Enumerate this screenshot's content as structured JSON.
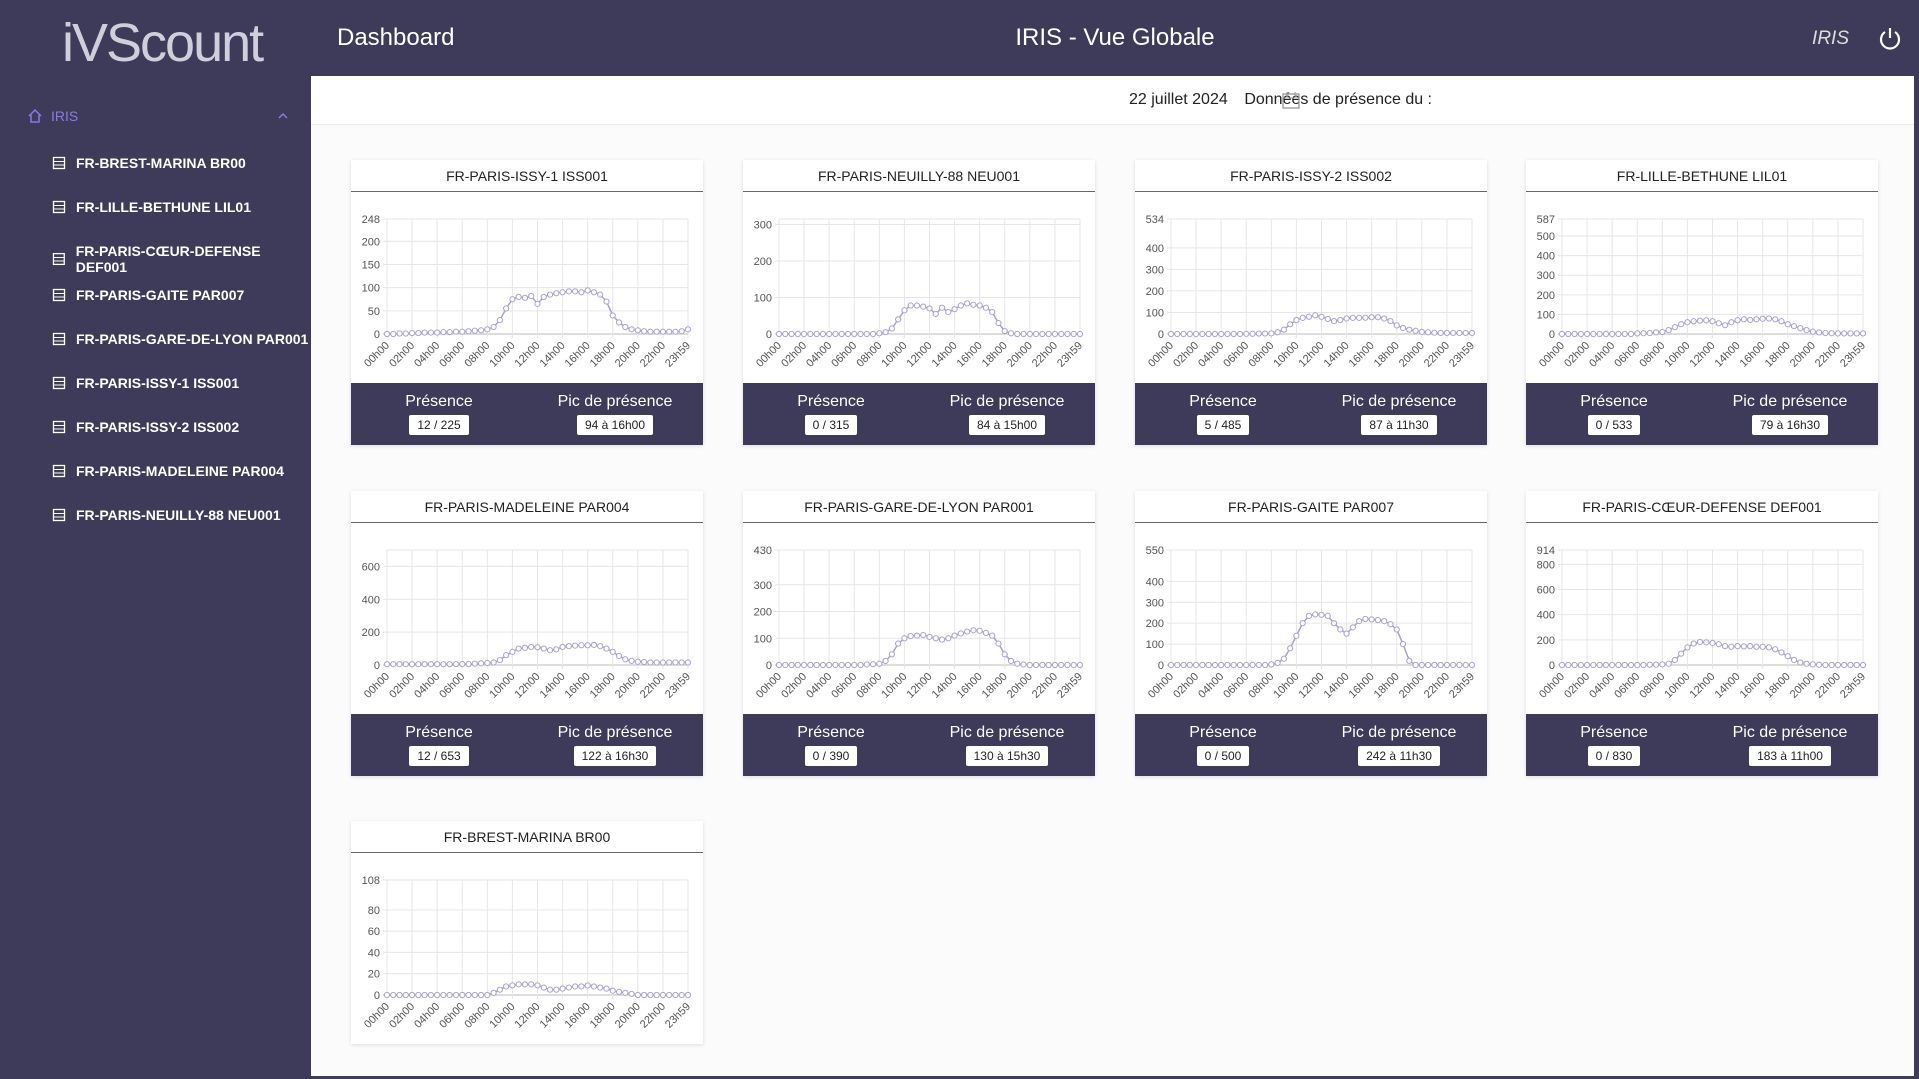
{
  "logo": "iVScount",
  "header": {
    "page": "Dashboard",
    "title": "IRIS - Vue Globale",
    "user": "IRIS"
  },
  "sidebar": {
    "group": "IRIS",
    "items": [
      "FR-BREST-MARINA BR00",
      "FR-LILLE-BETHUNE LIL01",
      "FR-PARIS-CŒUR-DEFENSE DEF001",
      "FR-PARIS-GAITE PAR007",
      "FR-PARIS-GARE-DE-LYON PAR001",
      "FR-PARIS-ISSY-1 ISS001",
      "FR-PARIS-ISSY-2 ISS002",
      "FR-PARIS-MADELEINE PAR004",
      "FR-PARIS-NEUILLY-88 NEU001"
    ]
  },
  "date_bar": {
    "label": "Données de présence du :",
    "date": "22 juillet 2024"
  },
  "chart_data": [
    {
      "type": "line",
      "title": "FR-PARIS-ISSY-1 ISS001",
      "color": "#a9a1d4",
      "categories": [
        "00h00",
        null,
        null,
        null,
        "02h00",
        null,
        null,
        null,
        "04h00",
        null,
        null,
        null,
        "06h00",
        null,
        null,
        null,
        "08h00",
        null,
        null,
        null,
        "10h00",
        null,
        null,
        null,
        "12h00",
        null,
        null,
        null,
        "14h00",
        null,
        null,
        null,
        "16h00",
        null,
        null,
        null,
        "18h00",
        null,
        null,
        null,
        "20h00",
        null,
        null,
        null,
        "22h00",
        null,
        null,
        null,
        "23h59"
      ],
      "values": [
        0,
        0,
        1,
        1,
        2,
        2,
        3,
        3,
        3,
        4,
        4,
        5,
        5,
        6,
        7,
        8,
        10,
        15,
        30,
        55,
        75,
        80,
        78,
        82,
        65,
        80,
        85,
        88,
        90,
        92,
        92,
        90,
        94,
        90,
        85,
        70,
        40,
        25,
        15,
        10,
        8,
        6,
        5,
        5,
        5,
        5,
        5,
        6,
        10
      ],
      "ylim": [
        0,
        248
      ],
      "yticks": [
        0,
        50,
        100,
        150,
        200,
        248
      ],
      "grid": true,
      "footer": {
        "presence_label": "Présence",
        "presence": "12 / 225",
        "peak_label": "Pic de présence",
        "peak": "94 à 16h00"
      }
    },
    {
      "type": "line",
      "title": "FR-PARIS-NEUILLY-88 NEU001",
      "color": "#a9a1d4",
      "categories": [
        "00h00",
        null,
        null,
        null,
        "02h00",
        null,
        null,
        null,
        "04h00",
        null,
        null,
        null,
        "06h00",
        null,
        null,
        null,
        "08h00",
        null,
        null,
        null,
        "10h00",
        null,
        null,
        null,
        "12h00",
        null,
        null,
        null,
        "14h00",
        null,
        null,
        null,
        "16h00",
        null,
        null,
        null,
        "18h00",
        null,
        null,
        null,
        "20h00",
        null,
        null,
        null,
        "22h00",
        null,
        null,
        null,
        "23h59"
      ],
      "values": [
        0,
        0,
        0,
        0,
        0,
        0,
        0,
        0,
        0,
        0,
        0,
        0,
        0,
        0,
        0,
        0,
        2,
        5,
        15,
        40,
        65,
        78,
        78,
        75,
        70,
        55,
        72,
        60,
        68,
        78,
        84,
        80,
        78,
        72,
        60,
        30,
        8,
        2,
        0,
        0,
        0,
        0,
        0,
        0,
        0,
        0,
        0,
        0,
        0
      ],
      "ylim": [
        0,
        315
      ],
      "yticks": [
        0,
        100,
        200,
        300
      ],
      "grid": true,
      "footer": {
        "presence_label": "Présence",
        "presence": "0 / 315",
        "peak_label": "Pic de présence",
        "peak": "84 à 15h00"
      }
    },
    {
      "type": "line",
      "title": "FR-PARIS-ISSY-2 ISS002",
      "color": "#a9a1d4",
      "categories": [
        "00h00",
        null,
        null,
        null,
        "02h00",
        null,
        null,
        null,
        "04h00",
        null,
        null,
        null,
        "06h00",
        null,
        null,
        null,
        "08h00",
        null,
        null,
        null,
        "10h00",
        null,
        null,
        null,
        "12h00",
        null,
        null,
        null,
        "14h00",
        null,
        null,
        null,
        "16h00",
        null,
        null,
        null,
        "18h00",
        null,
        null,
        null,
        "20h00",
        null,
        null,
        null,
        "22h00",
        null,
        null,
        null,
        "23h59"
      ],
      "values": [
        0,
        0,
        0,
        0,
        0,
        0,
        0,
        0,
        0,
        0,
        0,
        0,
        1,
        1,
        2,
        2,
        3,
        8,
        20,
        45,
        65,
        75,
        80,
        87,
        80,
        70,
        60,
        65,
        72,
        75,
        75,
        76,
        78,
        78,
        72,
        60,
        40,
        28,
        20,
        15,
        10,
        8,
        6,
        5,
        5,
        5,
        5,
        5,
        5
      ],
      "ylim": [
        0,
        534
      ],
      "yticks": [
        0,
        100,
        200,
        300,
        400,
        534
      ],
      "grid": true,
      "footer": {
        "presence_label": "Présence",
        "presence": "5 / 485",
        "peak_label": "Pic de présence",
        "peak": "87 à 11h30"
      }
    },
    {
      "type": "line",
      "title": "FR-LILLE-BETHUNE LIL01",
      "color": "#a9a1d4",
      "categories": [
        "00h00",
        null,
        null,
        null,
        "02h00",
        null,
        null,
        null,
        "04h00",
        null,
        null,
        null,
        "06h00",
        null,
        null,
        null,
        "08h00",
        null,
        null,
        null,
        "10h00",
        null,
        null,
        null,
        "12h00",
        null,
        null,
        null,
        "14h00",
        null,
        null,
        null,
        "16h00",
        null,
        null,
        null,
        "18h00",
        null,
        null,
        null,
        "20h00",
        null,
        null,
        null,
        "22h00",
        null,
        null,
        null,
        "23h59"
      ],
      "values": [
        0,
        0,
        0,
        0,
        0,
        0,
        0,
        0,
        0,
        0,
        0,
        0,
        3,
        4,
        5,
        8,
        10,
        20,
        35,
        50,
        60,
        65,
        68,
        70,
        65,
        55,
        45,
        60,
        70,
        75,
        72,
        75,
        78,
        79,
        75,
        65,
        50,
        40,
        30,
        20,
        12,
        8,
        5,
        4,
        3,
        3,
        3,
        3,
        3
      ],
      "ylim": [
        0,
        587
      ],
      "yticks": [
        0,
        100,
        200,
        300,
        400,
        500,
        587
      ],
      "grid": true,
      "footer": {
        "presence_label": "Présence",
        "presence": "0 / 533",
        "peak_label": "Pic de présence",
        "peak": "79 à 16h30"
      }
    },
    {
      "type": "line",
      "title": "FR-PARIS-MADELEINE PAR004",
      "color": "#a9a1d4",
      "categories": [
        "00h00",
        null,
        null,
        null,
        "02h00",
        null,
        null,
        null,
        "04h00",
        null,
        null,
        null,
        "06h00",
        null,
        null,
        null,
        "08h00",
        null,
        null,
        null,
        "10h00",
        null,
        null,
        null,
        "12h00",
        null,
        null,
        null,
        "14h00",
        null,
        null,
        null,
        "16h00",
        null,
        null,
        null,
        "18h00",
        null,
        null,
        null,
        "20h00",
        null,
        null,
        null,
        "22h00",
        null,
        null,
        null,
        "23h59"
      ],
      "values": [
        5,
        5,
        5,
        5,
        5,
        5,
        5,
        5,
        5,
        5,
        5,
        5,
        6,
        6,
        8,
        10,
        12,
        15,
        30,
        60,
        80,
        100,
        105,
        110,
        108,
        100,
        90,
        95,
        110,
        115,
        118,
        120,
        120,
        122,
        115,
        100,
        80,
        55,
        35,
        25,
        20,
        18,
        15,
        15,
        15,
        15,
        15,
        15,
        15
      ],
      "ylim": [
        0,
        700
      ],
      "yticks": [
        0,
        200,
        400,
        600
      ],
      "grid": true,
      "footer": {
        "presence_label": "Présence",
        "presence": "12 / 653",
        "peak_label": "Pic de présence",
        "peak": "122 à 16h30"
      }
    },
    {
      "type": "line",
      "title": "FR-PARIS-GARE-DE-LYON PAR001",
      "color": "#a9a1d4",
      "categories": [
        "00h00",
        null,
        null,
        null,
        "02h00",
        null,
        null,
        null,
        "04h00",
        null,
        null,
        null,
        "06h00",
        null,
        null,
        null,
        "08h00",
        null,
        null,
        null,
        "10h00",
        null,
        null,
        null,
        "12h00",
        null,
        null,
        null,
        "14h00",
        null,
        null,
        null,
        "16h00",
        null,
        null,
        null,
        "18h00",
        null,
        null,
        null,
        "20h00",
        null,
        null,
        null,
        "22h00",
        null,
        null,
        null,
        "23h59"
      ],
      "values": [
        0,
        0,
        0,
        0,
        0,
        0,
        0,
        0,
        0,
        0,
        0,
        0,
        0,
        0,
        2,
        3,
        5,
        15,
        40,
        80,
        100,
        108,
        110,
        112,
        105,
        100,
        95,
        100,
        110,
        118,
        125,
        130,
        128,
        120,
        110,
        80,
        40,
        15,
        5,
        2,
        0,
        0,
        0,
        0,
        0,
        0,
        0,
        0,
        0
      ],
      "ylim": [
        0,
        430
      ],
      "yticks": [
        0,
        100,
        200,
        300,
        430
      ],
      "grid": true,
      "footer": {
        "presence_label": "Présence",
        "presence": "0 / 390",
        "peak_label": "Pic de présence",
        "peak": "130 à 15h30"
      }
    },
    {
      "type": "line",
      "title": "FR-PARIS-GAITE PAR007",
      "color": "#a9a1d4",
      "categories": [
        "00h00",
        null,
        null,
        null,
        "02h00",
        null,
        null,
        null,
        "04h00",
        null,
        null,
        null,
        "06h00",
        null,
        null,
        null,
        "08h00",
        null,
        null,
        null,
        "10h00",
        null,
        null,
        null,
        "12h00",
        null,
        null,
        null,
        "14h00",
        null,
        null,
        null,
        "16h00",
        null,
        null,
        null,
        "18h00",
        null,
        null,
        null,
        "20h00",
        null,
        null,
        null,
        "22h00",
        null,
        null,
        null,
        "23h59"
      ],
      "values": [
        0,
        0,
        0,
        0,
        0,
        0,
        0,
        0,
        0,
        0,
        0,
        0,
        0,
        0,
        0,
        0,
        3,
        10,
        30,
        80,
        140,
        200,
        235,
        242,
        240,
        235,
        200,
        170,
        150,
        180,
        210,
        220,
        218,
        215,
        210,
        195,
        170,
        100,
        20,
        0,
        0,
        0,
        0,
        0,
        0,
        0,
        0,
        0,
        0
      ],
      "ylim": [
        0,
        550
      ],
      "yticks": [
        0,
        100,
        200,
        300,
        400,
        550
      ],
      "grid": true,
      "footer": {
        "presence_label": "Présence",
        "presence": "0 / 500",
        "peak_label": "Pic de présence",
        "peak": "242 à 11h30"
      }
    },
    {
      "type": "line",
      "title": "FR-PARIS-CŒUR-DEFENSE DEF001",
      "color": "#a9a1d4",
      "categories": [
        "00h00",
        null,
        null,
        null,
        "02h00",
        null,
        null,
        null,
        "04h00",
        null,
        null,
        null,
        "06h00",
        null,
        null,
        null,
        "08h00",
        null,
        null,
        null,
        "10h00",
        null,
        null,
        null,
        "12h00",
        null,
        null,
        null,
        "14h00",
        null,
        null,
        null,
        "16h00",
        null,
        null,
        null,
        "18h00",
        null,
        null,
        null,
        "20h00",
        null,
        null,
        null,
        "22h00",
        null,
        null,
        null,
        "23h59"
      ],
      "values": [
        0,
        0,
        0,
        0,
        0,
        0,
        0,
        0,
        0,
        0,
        0,
        0,
        0,
        0,
        2,
        3,
        5,
        10,
        40,
        90,
        140,
        170,
        183,
        180,
        175,
        165,
        150,
        145,
        150,
        148,
        150,
        145,
        145,
        140,
        125,
        100,
        70,
        40,
        20,
        10,
        5,
        2,
        0,
        0,
        0,
        0,
        0,
        0,
        0
      ],
      "ylim": [
        0,
        914
      ],
      "yticks": [
        0,
        200,
        400,
        600,
        800,
        914
      ],
      "grid": true,
      "footer": {
        "presence_label": "Présence",
        "presence": "0 / 830",
        "peak_label": "Pic de présence",
        "peak": "183 à 11h00"
      }
    },
    {
      "type": "line",
      "title": "FR-BREST-MARINA BR00",
      "color": "#a9a1d4",
      "categories": [
        "00h00",
        null,
        null,
        null,
        "02h00",
        null,
        null,
        null,
        "04h00",
        null,
        null,
        null,
        "06h00",
        null,
        null,
        null,
        "08h00",
        null,
        null,
        null,
        "10h00",
        null,
        null,
        null,
        "12h00",
        null,
        null,
        null,
        "14h00",
        null,
        null,
        null,
        "16h00",
        null,
        null,
        null,
        "18h00",
        null,
        null,
        null,
        "20h00",
        null,
        null,
        null,
        "22h00",
        null,
        null,
        null,
        "23h59"
      ],
      "values": [
        0,
        0,
        0,
        0,
        0,
        0,
        0,
        0,
        0,
        0,
        0,
        0,
        0,
        0,
        0,
        0,
        0,
        2,
        5,
        8,
        9,
        10,
        10,
        10,
        9,
        7,
        5,
        5,
        6,
        7,
        8,
        8,
        9,
        8,
        7,
        6,
        4,
        3,
        2,
        1,
        0,
        0,
        0,
        0,
        0,
        0,
        0,
        0,
        0
      ],
      "ylim": [
        0,
        108
      ],
      "yticks": [
        0,
        20,
        40,
        60,
        80,
        108
      ],
      "grid": true
    }
  ]
}
